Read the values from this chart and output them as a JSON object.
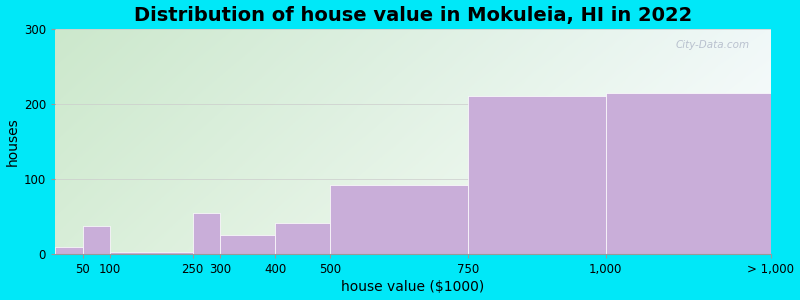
{
  "title": "Distribution of house value in Mokuleia, HI in 2022",
  "xlabel": "house value ($1000)",
  "ylabel": "houses",
  "tick_positions": [
    50,
    100,
    250,
    300,
    400,
    500,
    750,
    1000,
    1300
  ],
  "tick_labels": [
    "50",
    "100",
    "250",
    "300",
    "400",
    "500",
    "750",
    "1,000",
    "> 1,000"
  ],
  "bar_left": [
    0,
    50,
    100,
    250,
    300,
    400,
    500,
    750,
    1000
  ],
  "bar_right": [
    50,
    100,
    250,
    300,
    400,
    500,
    750,
    1000,
    1300
  ],
  "bar_values": [
    10,
    38,
    3,
    55,
    25,
    42,
    92,
    210,
    215
  ],
  "bar_color": "#c9aed9",
  "bar_edgecolor": "#ffffff",
  "ylim": [
    0,
    300
  ],
  "yticks": [
    0,
    100,
    200,
    300
  ],
  "xlim": [
    0,
    1300
  ],
  "background_outer": "#00e8f8",
  "grad_topleft": "#cce8cc",
  "grad_topright": "#f0f8f8",
  "grad_bottomleft": "#d8eed8",
  "grad_bottomright": "#ffffff",
  "title_fontsize": 14,
  "axis_label_fontsize": 10,
  "tick_fontsize": 8.5,
  "watermark_text": "City-Data.com"
}
